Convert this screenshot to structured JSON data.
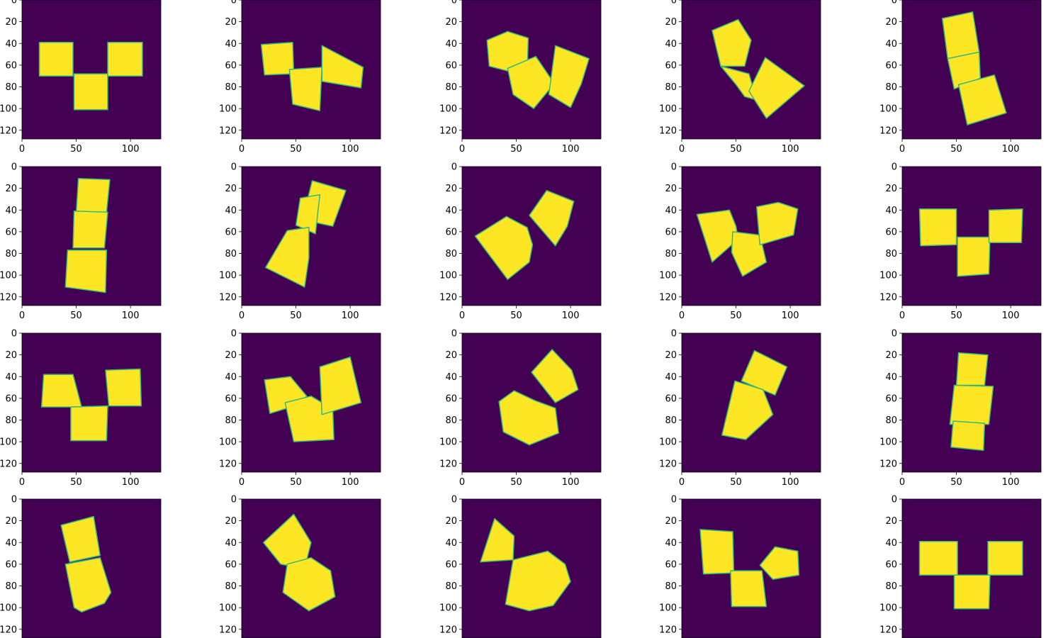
{
  "colors": {
    "background": "#440154",
    "shape_fill": "#fde725",
    "shape_edge": "#35b779",
    "axis": "#000000"
  },
  "chart_data": {
    "type": "image-grid",
    "rows": 4,
    "cols": 5,
    "x_ticks": [
      "0",
      "50",
      "100"
    ],
    "y_ticks": [
      "0",
      "20",
      "40",
      "60",
      "80",
      "100",
      "120"
    ],
    "image_extent": [
      0,
      128
    ],
    "panels": [
      {
        "row": 0,
        "col": 0,
        "polygons": [
          [
            [
              16,
              39
            ],
            [
              47,
              39
            ],
            [
              47,
              70
            ],
            [
              16,
              70
            ]
          ],
          [
            [
              48,
              68
            ],
            [
              79,
              68
            ],
            [
              79,
              101
            ],
            [
              48,
              101
            ]
          ],
          [
            [
              79,
              39
            ],
            [
              111,
              39
            ],
            [
              111,
              70
            ],
            [
              79,
              70
            ]
          ]
        ]
      },
      {
        "row": 0,
        "col": 1,
        "polygons": [
          [
            [
              18,
              41
            ],
            [
              47,
              39
            ],
            [
              48,
              68
            ],
            [
              21,
              69
            ]
          ],
          [
            [
              44,
              64
            ],
            [
              74,
              62
            ],
            [
              72,
              102
            ],
            [
              47,
              96
            ]
          ],
          [
            [
              74,
              42
            ],
            [
              112,
              62
            ],
            [
              110,
              81
            ],
            [
              74,
              75
            ]
          ]
        ]
      },
      {
        "row": 0,
        "col": 2,
        "polygons": [
          [
            [
              23,
              37
            ],
            [
              42,
              29
            ],
            [
              61,
              35
            ],
            [
              60,
              70
            ],
            [
              25,
              61
            ]
          ],
          [
            [
              42,
              63
            ],
            [
              68,
              52
            ],
            [
              85,
              77
            ],
            [
              66,
              100
            ],
            [
              47,
              87
            ]
          ],
          [
            [
              86,
              42
            ],
            [
              117,
              54
            ],
            [
              110,
              77
            ],
            [
              100,
              99
            ],
            [
              80,
              87
            ]
          ]
        ]
      },
      {
        "row": 0,
        "col": 3,
        "polygons": [
          [
            [
              28,
              28
            ],
            [
              52,
              18
            ],
            [
              64,
              37
            ],
            [
              58,
              61
            ],
            [
              36,
              61
            ]
          ],
          [
            [
              36,
              61
            ],
            [
              62,
              68
            ],
            [
              69,
              92
            ],
            [
              58,
              89
            ],
            [
              50,
              78
            ]
          ],
          [
            [
              77,
              53
            ],
            [
              113,
              79
            ],
            [
              78,
              109
            ],
            [
              62,
              84
            ]
          ]
        ]
      },
      {
        "row": 0,
        "col": 4,
        "polygons": [
          [
            [
              37,
              17
            ],
            [
              65,
              11
            ],
            [
              71,
              48
            ],
            [
              42,
              54
            ]
          ],
          [
            [
              42,
              54
            ],
            [
              71,
              48
            ],
            [
              72,
              72
            ],
            [
              48,
              82
            ]
          ],
          [
            [
              52,
              78
            ],
            [
              85,
              69
            ],
            [
              96,
              104
            ],
            [
              60,
              115
            ]
          ]
        ]
      },
      {
        "row": 1,
        "col": 0,
        "polygons": [
          [
            [
              52,
              11
            ],
            [
              81,
              12
            ],
            [
              78,
              42
            ],
            [
              50,
              42
            ]
          ],
          [
            [
              48,
              41
            ],
            [
              79,
              42
            ],
            [
              76,
              75
            ],
            [
              47,
              75
            ]
          ],
          [
            [
              42,
              77
            ],
            [
              78,
              77
            ],
            [
              77,
              116
            ],
            [
              40,
              111
            ]
          ]
        ]
      },
      {
        "row": 1,
        "col": 1,
        "polygons": [
          [
            [
              65,
              13
            ],
            [
              96,
              22
            ],
            [
              84,
              55
            ],
            [
              56,
              49
            ]
          ],
          [
            [
              54,
              29
            ],
            [
              72,
              26
            ],
            [
              68,
              62
            ],
            [
              50,
              54
            ]
          ],
          [
            [
              42,
              59
            ],
            [
              62,
              56
            ],
            [
              62,
              84
            ],
            [
              58,
              111
            ],
            [
              22,
              93
            ]
          ]
        ]
      },
      {
        "row": 1,
        "col": 2,
        "polygons": [
          [
            [
              78,
              22
            ],
            [
              103,
              32
            ],
            [
              97,
              55
            ],
            [
              86,
              73
            ],
            [
              62,
              45
            ]
          ],
          [
            [
              41,
              46
            ],
            [
              60,
              56
            ],
            [
              65,
              72
            ],
            [
              62,
              88
            ],
            [
              42,
              104
            ],
            [
              12,
              64
            ]
          ]
        ]
      },
      {
        "row": 1,
        "col": 3,
        "polygons": [
          [
            [
              14,
              44
            ],
            [
              44,
              40
            ],
            [
              50,
              55
            ],
            [
              52,
              67
            ],
            [
              28,
              88
            ]
          ],
          [
            [
              47,
              60
            ],
            [
              72,
              63
            ],
            [
              78,
              88
            ],
            [
              56,
              101
            ],
            [
              46,
              79
            ]
          ],
          [
            [
              69,
              37
            ],
            [
              89,
              33
            ],
            [
              107,
              39
            ],
            [
              103,
              63
            ],
            [
              72,
              72
            ]
          ]
        ]
      },
      {
        "row": 1,
        "col": 4,
        "polygons": [
          [
            [
              16,
              39
            ],
            [
              50,
              39
            ],
            [
              50,
              72
            ],
            [
              17,
              73
            ]
          ],
          [
            [
              51,
              65
            ],
            [
              81,
              65
            ],
            [
              80,
              99
            ],
            [
              51,
              101
            ]
          ],
          [
            [
              80,
              40
            ],
            [
              111,
              39
            ],
            [
              110,
              70
            ],
            [
              80,
              70
            ]
          ]
        ]
      },
      {
        "row": 2,
        "col": 0,
        "polygons": [
          [
            [
              20,
              38
            ],
            [
              47,
              38
            ],
            [
              55,
              68
            ],
            [
              18,
              68
            ]
          ],
          [
            [
              45,
              68
            ],
            [
              79,
              67
            ],
            [
              78,
              99
            ],
            [
              45,
              99
            ]
          ],
          [
            [
              77,
              34
            ],
            [
              109,
              33
            ],
            [
              110,
              67
            ],
            [
              80,
              67
            ]
          ]
        ]
      },
      {
        "row": 2,
        "col": 1,
        "polygons": [
          [
            [
              21,
              43
            ],
            [
              45,
              40
            ],
            [
              60,
              58
            ],
            [
              52,
              66
            ],
            [
              26,
              74
            ]
          ],
          [
            [
              40,
              64
            ],
            [
              64,
              58
            ],
            [
              84,
              70
            ],
            [
              85,
              98
            ],
            [
              48,
              100
            ]
          ],
          [
            [
              72,
              31
            ],
            [
              100,
              22
            ],
            [
              110,
              64
            ],
            [
              74,
              75
            ]
          ]
        ]
      },
      {
        "row": 2,
        "col": 2,
        "polygons": [
          [
            [
              64,
              36
            ],
            [
              83,
              15
            ],
            [
              101,
              34
            ],
            [
              107,
              52
            ],
            [
              86,
              64
            ]
          ],
          [
            [
              34,
              63
            ],
            [
              48,
              53
            ],
            [
              67,
              62
            ],
            [
              86,
              69
            ],
            [
              89,
              92
            ],
            [
              62,
              103
            ],
            [
              38,
              91
            ]
          ]
        ]
      },
      {
        "row": 2,
        "col": 3,
        "polygons": [
          [
            [
              67,
              16
            ],
            [
              97,
              31
            ],
            [
              86,
              57
            ],
            [
              55,
              44
            ]
          ],
          [
            [
              49,
              44
            ],
            [
              75,
              52
            ],
            [
              84,
              75
            ],
            [
              59,
              98
            ],
            [
              37,
              94
            ]
          ]
        ]
      },
      {
        "row": 2,
        "col": 4,
        "polygons": [
          [
            [
              52,
              18
            ],
            [
              79,
              20
            ],
            [
              76,
              48
            ],
            [
              50,
              48
            ]
          ],
          [
            [
              48,
              48
            ],
            [
              84,
              49
            ],
            [
              80,
              84
            ],
            [
              44,
              84
            ]
          ],
          [
            [
              47,
              81
            ],
            [
              76,
              83
            ],
            [
              75,
              108
            ],
            [
              45,
              105
            ]
          ]
        ]
      },
      {
        "row": 3,
        "col": 0,
        "polygons": [
          [
            [
              36,
              24
            ],
            [
              66,
              16
            ],
            [
              72,
              52
            ],
            [
              44,
              58
            ]
          ],
          [
            [
              40,
              60
            ],
            [
              72,
              54
            ],
            [
              82,
              86
            ],
            [
              76,
              96
            ],
            [
              55,
              104
            ],
            [
              48,
              100
            ]
          ]
        ]
      },
      {
        "row": 3,
        "col": 1,
        "polygons": [
          [
            [
              20,
              40
            ],
            [
              48,
              14
            ],
            [
              64,
              40
            ],
            [
              58,
              64
            ],
            [
              36,
              60
            ]
          ],
          [
            [
              42,
              60
            ],
            [
              64,
              54
            ],
            [
              82,
              66
            ],
            [
              86,
              90
            ],
            [
              62,
              103
            ],
            [
              38,
              86
            ]
          ]
        ]
      },
      {
        "row": 3,
        "col": 2,
        "polygons": [
          [
            [
              17,
              58
            ],
            [
              30,
              18
            ],
            [
              48,
              34
            ],
            [
              47,
              56
            ]
          ],
          [
            [
              47,
              56
            ],
            [
              79,
              48
            ],
            [
              95,
              60
            ],
            [
              100,
              76
            ],
            [
              84,
              98
            ],
            [
              62,
              103
            ],
            [
              40,
              97
            ]
          ]
        ]
      },
      {
        "row": 3,
        "col": 3,
        "polygons": [
          [
            [
              17,
              28
            ],
            [
              47,
              30
            ],
            [
              48,
              68
            ],
            [
              20,
              69
            ]
          ],
          [
            [
              45,
              66
            ],
            [
              74,
              66
            ],
            [
              78,
              99
            ],
            [
              46,
              99
            ]
          ],
          [
            [
              72,
              61
            ],
            [
              86,
              44
            ],
            [
              107,
              48
            ],
            [
              108,
              70
            ],
            [
              84,
              74
            ]
          ]
        ]
      },
      {
        "row": 3,
        "col": 4,
        "polygons": [
          [
            [
              16,
              39
            ],
            [
              51,
              39
            ],
            [
              51,
              70
            ],
            [
              16,
              70
            ]
          ],
          [
            [
              48,
              70
            ],
            [
              81,
              70
            ],
            [
              80,
              101
            ],
            [
              48,
              101
            ]
          ],
          [
            [
              79,
              39
            ],
            [
              111,
              39
            ],
            [
              111,
              70
            ],
            [
              79,
              70
            ]
          ]
        ]
      }
    ]
  }
}
